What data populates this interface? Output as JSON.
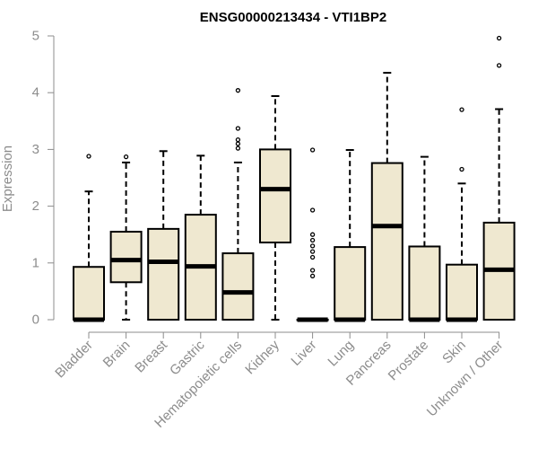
{
  "chart_data": {
    "type": "boxplot",
    "title": "ENSG00000213434 - VTI1BP2",
    "xlabel": "",
    "ylabel": "Expression",
    "ylim": [
      0,
      5
    ],
    "yticks": [
      "0",
      "1",
      "2",
      "3",
      "4",
      "5"
    ],
    "grid": false,
    "legend": "none",
    "box_fill_color": "#efe8d0",
    "box_stroke_color": "#000000",
    "axis_color": "#8c8c8c",
    "categories": [
      "Bladder",
      "Brain",
      "Breast",
      "Gastric",
      "Hematopoietic cells",
      "Kidney",
      "Liver",
      "Lung",
      "Pancreas",
      "Prostate",
      "Skin",
      "Unknown / Other"
    ],
    "boxes": [
      {
        "category": "Bladder",
        "whisker_low": 0,
        "q1": 0,
        "median": 0,
        "q3": 0.93,
        "whisker_high": 2.26,
        "outliers": [
          2.88
        ]
      },
      {
        "category": "Brain",
        "whisker_low": 0,
        "q1": 0.66,
        "median": 1.05,
        "q3": 1.55,
        "whisker_high": 2.77,
        "outliers": [
          2.87
        ]
      },
      {
        "category": "Breast",
        "whisker_low": 0,
        "q1": 0,
        "median": 1.02,
        "q3": 1.6,
        "whisker_high": 2.97,
        "outliers": []
      },
      {
        "category": "Gastric",
        "whisker_low": 0,
        "q1": 0,
        "median": 0.94,
        "q3": 1.85,
        "whisker_high": 2.89,
        "outliers": []
      },
      {
        "category": "Hematopoietic cells",
        "whisker_low": 0,
        "q1": 0,
        "median": 0.48,
        "q3": 1.17,
        "whisker_high": 2.77,
        "outliers": [
          3.02,
          3.1,
          3.17,
          3.37,
          4.04
        ]
      },
      {
        "category": "Kidney",
        "whisker_low": 0,
        "q1": 1.36,
        "median": 2.3,
        "q3": 3.0,
        "whisker_high": 3.94,
        "outliers": []
      },
      {
        "category": "Liver",
        "whisker_low": 0,
        "q1": 0,
        "median": 0,
        "q3": 0,
        "whisker_high": 0,
        "outliers": [
          0.77,
          0.87,
          1.1,
          1.2,
          1.3,
          1.4,
          1.5,
          1.93,
          2.99
        ]
      },
      {
        "category": "Lung",
        "whisker_low": 0,
        "q1": 0,
        "median": 0,
        "q3": 1.28,
        "whisker_high": 2.99,
        "outliers": []
      },
      {
        "category": "Pancreas",
        "whisker_low": 0,
        "q1": 0,
        "median": 1.65,
        "q3": 2.76,
        "whisker_high": 4.35,
        "outliers": []
      },
      {
        "category": "Prostate",
        "whisker_low": 0,
        "q1": 0,
        "median": 0,
        "q3": 1.29,
        "whisker_high": 2.87,
        "outliers": []
      },
      {
        "category": "Skin",
        "whisker_low": 0,
        "q1": 0,
        "median": 0,
        "q3": 0.97,
        "whisker_high": 2.4,
        "outliers": [
          2.65,
          3.7
        ]
      },
      {
        "category": "Unknown / Other",
        "whisker_low": 0,
        "q1": 0,
        "median": 0.88,
        "q3": 1.71,
        "whisker_high": 3.71,
        "outliers": [
          4.48,
          4.96
        ]
      }
    ]
  }
}
